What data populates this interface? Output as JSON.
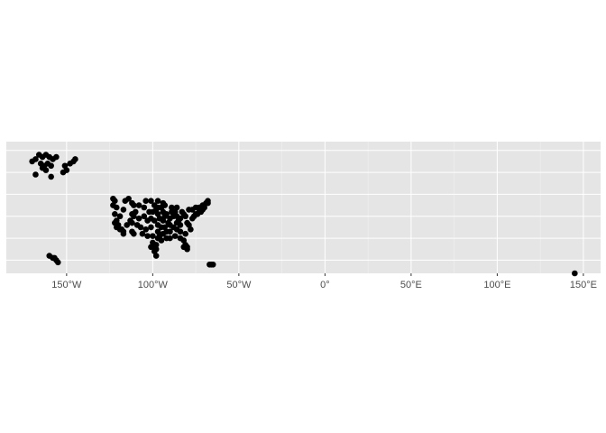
{
  "chart_data": {
    "type": "scatter",
    "title": "",
    "xlabel": "",
    "ylabel": "",
    "xlim": [
      -185,
      160
    ],
    "ylim": [
      14,
      74
    ],
    "grid": true,
    "legend": "none",
    "colors": {
      "panel": "#e5e5e5",
      "grid_major": "#ffffff",
      "grid_minor": "#f0f0f0",
      "point": "#000000",
      "axis_text": "#4d4d4d",
      "tick": "#333333"
    },
    "x_ticks": [
      {
        "value": -150,
        "label": "150°W"
      },
      {
        "value": -100,
        "label": "100°W"
      },
      {
        "value": -50,
        "label": "50°W"
      },
      {
        "value": 0,
        "label": "0°"
      },
      {
        "value": 50,
        "label": "50°E"
      },
      {
        "value": 100,
        "label": "100°E"
      },
      {
        "value": 150,
        "label": "150°E"
      }
    ],
    "y_grid": [
      20,
      30,
      40,
      50,
      60,
      70
    ],
    "points": [
      [
        -168,
        66
      ],
      [
        -166,
        68
      ],
      [
        -164,
        67
      ],
      [
        -162,
        68
      ],
      [
        -160,
        67
      ],
      [
        -158,
        66
      ],
      [
        -156,
        67
      ],
      [
        -170,
        65
      ],
      [
        -165,
        64
      ],
      [
        -163,
        63
      ],
      [
        -161,
        64
      ],
      [
        -159,
        63
      ],
      [
        -164,
        62
      ],
      [
        -162,
        61
      ],
      [
        -168,
        59
      ],
      [
        -159,
        58
      ],
      [
        -152,
        60
      ],
      [
        -150,
        61
      ],
      [
        -148,
        64
      ],
      [
        -146,
        65
      ],
      [
        -151,
        63
      ],
      [
        -145,
        66
      ],
      [
        -123,
        48
      ],
      [
        -122,
        47
      ],
      [
        -123,
        45
      ],
      [
        -121,
        44
      ],
      [
        -122,
        41
      ],
      [
        -121,
        38
      ],
      [
        -122,
        37
      ],
      [
        -121,
        35
      ],
      [
        -119,
        34
      ],
      [
        -118,
        34
      ],
      [
        -117,
        33
      ],
      [
        -117,
        32
      ],
      [
        -120,
        36
      ],
      [
        -119,
        40
      ],
      [
        -117,
        43
      ],
      [
        -116,
        47
      ],
      [
        -114,
        48
      ],
      [
        -112,
        46
      ],
      [
        -111,
        45
      ],
      [
        -112,
        41
      ],
      [
        -111,
        40
      ],
      [
        -112,
        37
      ],
      [
        -112,
        33
      ],
      [
        -111,
        32
      ],
      [
        -115,
        36
      ],
      [
        -113,
        38
      ],
      [
        -108,
        39
      ],
      [
        -107,
        35
      ],
      [
        -106,
        32
      ],
      [
        -105,
        40
      ],
      [
        -105,
        44
      ],
      [
        -108,
        45
      ],
      [
        -104,
        47
      ],
      [
        -101,
        47
      ],
      [
        -97,
        47
      ],
      [
        -97,
        44
      ],
      [
        -97,
        41
      ],
      [
        -96,
        39
      ],
      [
        -97,
        36
      ],
      [
        -97,
        33
      ],
      [
        -97,
        30
      ],
      [
        -98,
        27
      ],
      [
        -99,
        26
      ],
      [
        -99,
        24
      ],
      [
        -98,
        22
      ],
      [
        -100,
        28
      ],
      [
        -100,
        31
      ],
      [
        -101,
        35
      ],
      [
        -101,
        39
      ],
      [
        -100,
        42
      ],
      [
        -99,
        45
      ],
      [
        -94,
        46
      ],
      [
        -93,
        45
      ],
      [
        -94,
        42
      ],
      [
        -94,
        38
      ],
      [
        -93,
        35
      ],
      [
        -94,
        32
      ],
      [
        -92,
        30
      ],
      [
        -95,
        29
      ],
      [
        -90,
        30
      ],
      [
        -90,
        33
      ],
      [
        -90,
        36
      ],
      [
        -90,
        39
      ],
      [
        -89,
        42
      ],
      [
        -89,
        44
      ],
      [
        -86,
        44
      ],
      [
        -87,
        42
      ],
      [
        -86,
        40
      ],
      [
        -86,
        37
      ],
      [
        -86,
        34
      ],
      [
        -87,
        31
      ],
      [
        -84,
        30
      ],
      [
        -84,
        33
      ],
      [
        -84,
        36
      ],
      [
        -84,
        39
      ],
      [
        -83,
        42
      ],
      [
        -82,
        41
      ],
      [
        -81,
        40
      ],
      [
        -80,
        37
      ],
      [
        -79,
        36
      ],
      [
        -78,
        34
      ],
      [
        -81,
        32
      ],
      [
        -82,
        29
      ],
      [
        -81,
        27
      ],
      [
        -82,
        26
      ],
      [
        -80,
        26
      ],
      [
        -77,
        39
      ],
      [
        -76,
        40
      ],
      [
        -75,
        41
      ],
      [
        -74,
        41
      ],
      [
        -73,
        42
      ],
      [
        -72,
        42
      ],
      [
        -71,
        43
      ],
      [
        -71,
        45
      ],
      [
        -73,
        44
      ],
      [
        -75,
        44
      ],
      [
        -77,
        43
      ],
      [
        -79,
        43
      ],
      [
        -70,
        44
      ],
      [
        -69,
        46
      ],
      [
        -68,
        46
      ],
      [
        -68,
        47
      ],
      [
        -98,
        25
      ],
      [
        -101,
        26
      ],
      [
        -103,
        31
      ],
      [
        -104,
        34
      ],
      [
        -103,
        38
      ],
      [
        -102,
        42
      ],
      [
        -98,
        43
      ],
      [
        -95,
        44
      ],
      [
        -92,
        41
      ],
      [
        -91,
        37
      ],
      [
        -88,
        35
      ],
      [
        -85,
        38
      ],
      [
        -88,
        40
      ],
      [
        -95,
        35
      ],
      [
        -110,
        42
      ],
      [
        -109,
        36
      ],
      [
        -96,
        31
      ],
      [
        -92,
        33
      ],
      [
        -99,
        38
      ],
      [
        -93,
        40
      ],
      [
        -80,
        25
      ],
      [
        -160,
        22
      ],
      [
        -158,
        21
      ],
      [
        -157,
        21
      ],
      [
        -156,
        20
      ],
      [
        -155,
        19
      ],
      [
        -66,
        18
      ],
      [
        -65,
        18
      ],
      [
        -67,
        18
      ],
      [
        145,
        14
      ]
    ]
  }
}
